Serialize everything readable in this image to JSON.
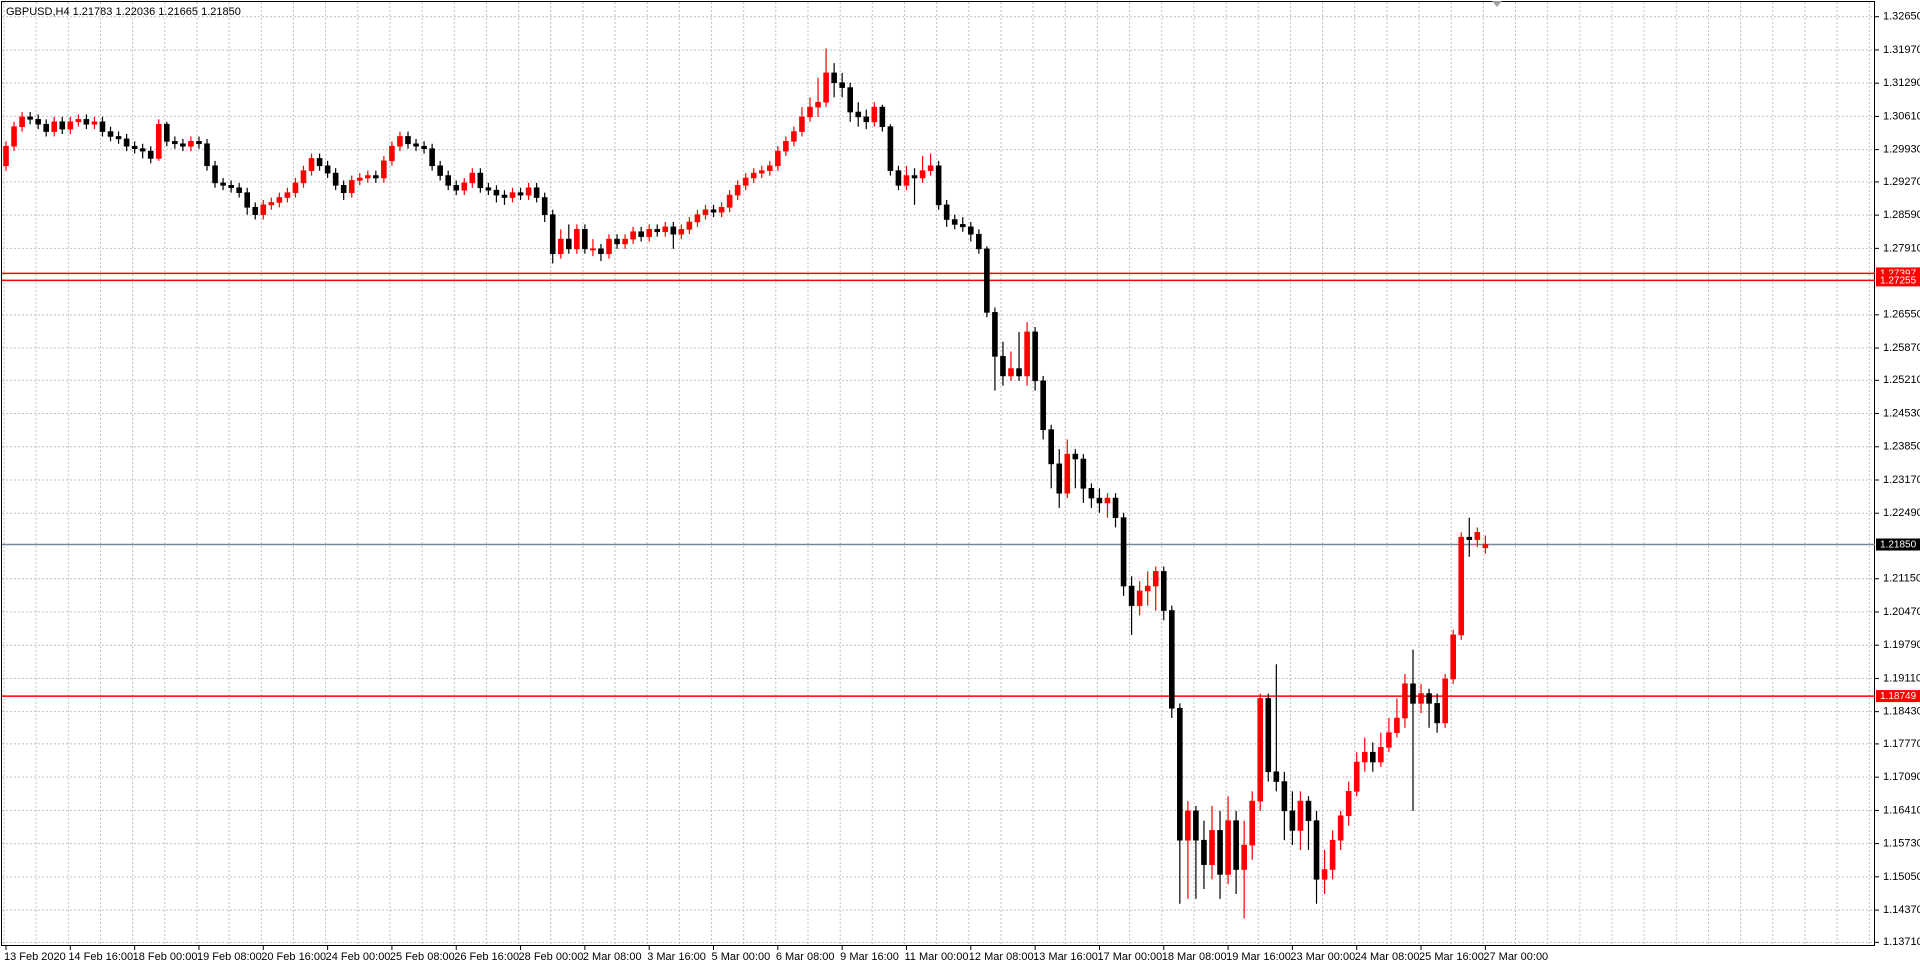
{
  "chart_data": {
    "type": "candlestick",
    "title": "GBPUSD,H4  1.21783 1.22036 1.21665 1.21850",
    "up_color": "#ff0000",
    "down_color": "#000000",
    "grid": true,
    "ylim": [
      1.13635,
      1.32951
    ],
    "yticks": [
      {
        "value": 1.3265,
        "label": "1.32650"
      },
      {
        "value": 1.3197,
        "label": "1.31970"
      },
      {
        "value": 1.3129,
        "label": "1.31290"
      },
      {
        "value": 1.3061,
        "label": "1.30610"
      },
      {
        "value": 1.2993,
        "label": "1.29930"
      },
      {
        "value": 1.2927,
        "label": "1.29270"
      },
      {
        "value": 1.2859,
        "label": "1.28590"
      },
      {
        "value": 1.2791,
        "label": "1.27910"
      },
      {
        "value": 1.2655,
        "label": "1.26550"
      },
      {
        "value": 1.2587,
        "label": "1.25870"
      },
      {
        "value": 1.2521,
        "label": "1.25210"
      },
      {
        "value": 1.2453,
        "label": "1.24530"
      },
      {
        "value": 1.2385,
        "label": "1.23850"
      },
      {
        "value": 1.2317,
        "label": "1.23170"
      },
      {
        "value": 1.2249,
        "label": "1.22490"
      },
      {
        "value": 1.2115,
        "label": "1.21150"
      },
      {
        "value": 1.2047,
        "label": "1.20470"
      },
      {
        "value": 1.1979,
        "label": "1.19790"
      },
      {
        "value": 1.1911,
        "label": "1.19110"
      },
      {
        "value": 1.1843,
        "label": "1.18430"
      },
      {
        "value": 1.1777,
        "label": "1.17770"
      },
      {
        "value": 1.1709,
        "label": "1.17090"
      },
      {
        "value": 1.1641,
        "label": "1.16410"
      },
      {
        "value": 1.1573,
        "label": "1.15730"
      },
      {
        "value": 1.1505,
        "label": "1.15050"
      },
      {
        "value": 1.1437,
        "label": "1.14370"
      },
      {
        "value": 1.1371,
        "label": "1.13710"
      }
    ],
    "hlines": [
      {
        "price": 1.27397,
        "color": "#ff0000",
        "label_bg": "#ff0000"
      },
      {
        "price": 1.27255,
        "color": "#ff0000",
        "label_bg": "#ff0000"
      },
      {
        "price": 1.18749,
        "color": "#ff0000",
        "label_bg": "#ff0000"
      },
      {
        "price": {
          "value": 1.2185,
          "label": "1.21850"
        },
        "color": "#778899",
        "label_bg": "#000000"
      }
    ],
    "categories": [
      "13 Feb 2020",
      null,
      null,
      null,
      null,
      null,
      null,
      null,
      "14 Feb 16:00",
      null,
      null,
      null,
      null,
      null,
      null,
      null,
      "18 Feb 00:00",
      null,
      null,
      null,
      null,
      null,
      null,
      null,
      "19 Feb 08:00",
      null,
      null,
      null,
      null,
      null,
      null,
      null,
      "20 Feb 16:00",
      null,
      null,
      null,
      null,
      null,
      null,
      null,
      "24 Feb 00:00",
      null,
      null,
      null,
      null,
      null,
      null,
      null,
      "25 Feb 08:00",
      null,
      null,
      null,
      null,
      null,
      null,
      null,
      "26 Feb 16:00",
      null,
      null,
      null,
      null,
      null,
      null,
      null,
      "28 Feb 00:00",
      null,
      null,
      null,
      null,
      null,
      null,
      null,
      "2 Mar 08:00",
      null,
      null,
      null,
      null,
      null,
      null,
      null,
      "3 Mar 16:00",
      null,
      null,
      null,
      null,
      null,
      null,
      null,
      "5 Mar 00:00",
      null,
      null,
      null,
      null,
      null,
      null,
      null,
      "6 Mar 08:00",
      null,
      null,
      null,
      null,
      null,
      null,
      null,
      "9 Mar 16:00",
      null,
      null,
      null,
      null,
      null,
      null,
      null,
      "11 Mar 00:00",
      null,
      null,
      null,
      null,
      null,
      null,
      null,
      "12 Mar 08:00",
      null,
      null,
      null,
      null,
      null,
      null,
      null,
      "13 Mar 16:00",
      null,
      null,
      null,
      null,
      null,
      null,
      null,
      "17 Mar 00:00",
      null,
      null,
      null,
      null,
      null,
      null,
      null,
      "18 Mar 08:00",
      null,
      null,
      null,
      null,
      null,
      null,
      null,
      "19 Mar 16:00",
      null,
      null,
      null,
      null,
      null,
      null,
      null,
      "23 Mar 00:00",
      null,
      null,
      null,
      null,
      null,
      null,
      null,
      "24 Mar 08:00",
      null,
      null,
      null,
      null,
      null,
      null,
      null,
      "25 Mar 16:00",
      null,
      null,
      null,
      null,
      null,
      null,
      null,
      "27 Mar 00:00"
    ],
    "open": [
      1.296,
      1.3,
      1.304,
      1.306,
      1.3055,
      1.3045,
      1.303,
      1.305,
      1.3035,
      1.305,
      1.3055,
      1.3045,
      1.305,
      1.303,
      1.302,
      1.3015,
      1.3,
      1.2995,
      1.299,
      1.2975,
      1.3045,
      1.301,
      1.3005,
      1.3,
      1.301,
      1.3005,
      1.296,
      1.2925,
      1.292,
      1.2915,
      1.2905,
      1.2875,
      1.286,
      1.288,
      1.2885,
      1.2895,
      1.2905,
      1.2925,
      1.295,
      1.2975,
      1.296,
      1.2945,
      1.292,
      1.2905,
      1.293,
      1.2935,
      1.294,
      1.2935,
      1.297,
      1.3,
      1.302,
      1.3005,
      1.3,
      1.2995,
      1.296,
      1.294,
      1.292,
      1.291,
      1.2925,
      1.2945,
      1.2915,
      1.291,
      1.29,
      1.2895,
      1.2905,
      1.29,
      1.2915,
      1.2895,
      1.286,
      1.278,
      1.281,
      1.279,
      1.283,
      1.279,
      1.279,
      1.278,
      1.281,
      1.28,
      1.281,
      1.2825,
      1.2815,
      1.283,
      1.2825,
      1.2835,
      1.282,
      1.283,
      1.2845,
      1.286,
      1.287,
      1.2865,
      1.2875,
      1.29,
      1.292,
      1.2935,
      1.2945,
      1.295,
      1.296,
      1.299,
      1.301,
      1.303,
      1.306,
      1.308,
      1.309,
      1.315,
      1.313,
      1.312,
      1.307,
      1.306,
      1.305,
      1.308,
      1.304,
      1.295,
      1.292,
      1.294,
      1.2935,
      1.295,
      1.296,
      1.288,
      1.285,
      1.284,
      1.2835,
      1.282,
      1.279,
      1.266,
      1.257,
      1.253,
      1.2545,
      1.253,
      1.262,
      1.252,
      1.242,
      1.235,
      1.229,
      1.237,
      1.236,
      1.23,
      1.228,
      1.227,
      1.228,
      1.224,
      1.21,
      1.206,
      1.209,
      1.21,
      1.213,
      1.205,
      1.185,
      1.158,
      1.164,
      1.158,
      1.153,
      1.16,
      1.151,
      1.162,
      1.152,
      1.157,
      1.166,
      1.187,
      1.172,
      1.17,
      1.164,
      1.16,
      1.166,
      1.162,
      1.15,
      1.152,
      1.158,
      1.163,
      1.168,
      1.174,
      1.176,
      1.174,
      1.177,
      1.18,
      1.183,
      1.19,
      1.186,
      1.188,
      1.186,
      1.182,
      1.191,
      1.2,
      1.22,
      1.2195,
      1.21783
    ],
    "high": [
      1.301,
      1.305,
      1.307,
      1.307,
      1.3065,
      1.3055,
      1.306,
      1.306,
      1.306,
      1.3065,
      1.3065,
      1.306,
      1.306,
      1.304,
      1.303,
      1.3025,
      1.301,
      1.3005,
      1.3,
      1.3055,
      1.305,
      1.302,
      1.3015,
      1.302,
      1.302,
      1.3015,
      1.297,
      1.2935,
      1.293,
      1.2925,
      1.2915,
      1.2885,
      1.289,
      1.2895,
      1.2905,
      1.2915,
      1.2935,
      1.296,
      1.2985,
      1.2985,
      1.297,
      1.2955,
      1.293,
      1.294,
      1.2945,
      1.295,
      1.295,
      1.298,
      1.301,
      1.303,
      1.303,
      1.3015,
      1.301,
      1.3005,
      1.297,
      1.295,
      1.293,
      1.2935,
      1.2955,
      1.2955,
      1.2925,
      1.292,
      1.291,
      1.2915,
      1.2915,
      1.2925,
      1.2925,
      1.2905,
      1.287,
      1.283,
      1.284,
      1.284,
      1.284,
      1.281,
      1.28,
      1.282,
      1.282,
      1.282,
      1.2835,
      1.2835,
      1.284,
      1.284,
      1.2845,
      1.2845,
      1.284,
      1.2855,
      1.287,
      1.288,
      1.288,
      1.2885,
      1.291,
      1.293,
      1.2945,
      1.2955,
      1.296,
      1.297,
      1.3,
      1.302,
      1.304,
      1.308,
      1.31,
      1.314,
      1.32,
      1.317,
      1.315,
      1.313,
      1.309,
      1.3075,
      1.309,
      1.3085,
      1.3045,
      1.296,
      1.296,
      1.2955,
      1.298,
      1.2985,
      1.297,
      1.289,
      1.286,
      1.2855,
      1.2845,
      1.283,
      1.2795,
      1.267,
      1.26,
      1.258,
      1.262,
      1.264,
      1.263,
      1.253,
      1.243,
      1.238,
      1.24,
      1.238,
      1.237,
      1.231,
      1.23,
      1.229,
      1.229,
      1.225,
      1.212,
      1.211,
      1.213,
      1.214,
      1.214,
      1.206,
      1.186,
      1.166,
      1.165,
      1.162,
      1.165,
      1.164,
      1.167,
      1.164,
      1.162,
      1.168,
      1.188,
      1.188,
      1.194,
      1.172,
      1.168,
      1.168,
      1.167,
      1.164,
      1.156,
      1.16,
      1.164,
      1.17,
      1.176,
      1.179,
      1.178,
      1.18,
      1.183,
      1.187,
      1.192,
      1.197,
      1.19,
      1.189,
      1.188,
      1.192,
      1.201,
      1.221,
      1.224,
      1.222,
      1.22036
    ],
    "low": [
      1.295,
      1.299,
      1.303,
      1.3045,
      1.3035,
      1.302,
      1.302,
      1.3025,
      1.3025,
      1.304,
      1.3035,
      1.3035,
      1.302,
      1.301,
      1.3005,
      1.299,
      1.2985,
      1.2975,
      1.2965,
      1.297,
      1.3,
      1.2995,
      1.299,
      1.299,
      1.2995,
      1.295,
      1.2915,
      1.291,
      1.2905,
      1.2895,
      1.286,
      1.285,
      1.285,
      1.287,
      1.2875,
      1.2885,
      1.2895,
      1.2915,
      1.294,
      1.295,
      1.2935,
      1.291,
      1.289,
      1.2895,
      1.292,
      1.2925,
      1.2925,
      1.2925,
      1.296,
      1.299,
      1.2995,
      1.299,
      1.2985,
      1.295,
      1.293,
      1.291,
      1.29,
      1.29,
      1.2915,
      1.2905,
      1.29,
      1.2885,
      1.288,
      1.2885,
      1.289,
      1.289,
      1.2885,
      1.2845,
      1.276,
      1.277,
      1.278,
      1.278,
      1.278,
      1.2775,
      1.2765,
      1.277,
      1.279,
      1.279,
      1.28,
      1.2805,
      1.2805,
      1.2815,
      1.2815,
      1.279,
      1.281,
      1.282,
      1.2835,
      1.285,
      1.2855,
      1.2855,
      1.2865,
      1.289,
      1.291,
      1.2925,
      1.2935,
      1.294,
      1.295,
      1.298,
      1.3,
      1.302,
      1.305,
      1.306,
      1.308,
      1.31,
      1.31,
      1.305,
      1.304,
      1.3035,
      1.304,
      1.303,
      1.294,
      1.291,
      1.291,
      1.288,
      1.2925,
      1.294,
      1.287,
      1.2835,
      1.283,
      1.2825,
      1.2805,
      1.278,
      1.265,
      1.25,
      1.251,
      1.252,
      1.252,
      1.251,
      1.25,
      1.24,
      1.23,
      1.226,
      1.228,
      1.23,
      1.227,
      1.226,
      1.225,
      1.224,
      1.222,
      1.208,
      1.2,
      1.204,
      1.206,
      1.205,
      1.203,
      1.183,
      1.145,
      1.146,
      1.146,
      1.148,
      1.15,
      1.146,
      1.149,
      1.147,
      1.142,
      1.154,
      1.164,
      1.17,
      1.168,
      1.158,
      1.157,
      1.156,
      1.156,
      1.145,
      1.147,
      1.15,
      1.156,
      1.161,
      1.167,
      1.172,
      1.172,
      1.173,
      1.176,
      1.179,
      1.181,
      1.164,
      1.184,
      1.181,
      1.18,
      1.181,
      1.19,
      1.199,
      1.216,
      1.218,
      1.21665
    ],
    "close": [
      1.3,
      1.304,
      1.306,
      1.3055,
      1.3045,
      1.303,
      1.305,
      1.3035,
      1.305,
      1.3055,
      1.3045,
      1.305,
      1.303,
      1.302,
      1.3015,
      1.3,
      1.2995,
      1.299,
      1.2975,
      1.3045,
      1.301,
      1.3005,
      1.3,
      1.301,
      1.3005,
      1.296,
      1.2925,
      1.292,
      1.2915,
      1.2905,
      1.2875,
      1.286,
      1.288,
      1.2885,
      1.2895,
      1.2905,
      1.2925,
      1.295,
      1.2975,
      1.296,
      1.2945,
      1.292,
      1.2905,
      1.293,
      1.2935,
      1.294,
      1.2935,
      1.297,
      1.3,
      1.302,
      1.3005,
      1.3,
      1.2995,
      1.296,
      1.294,
      1.292,
      1.291,
      1.2925,
      1.2945,
      1.2915,
      1.291,
      1.29,
      1.2895,
      1.2905,
      1.29,
      1.2915,
      1.2895,
      1.286,
      1.278,
      1.281,
      1.279,
      1.283,
      1.279,
      1.279,
      1.278,
      1.281,
      1.28,
      1.281,
      1.2825,
      1.2815,
      1.283,
      1.2825,
      1.2835,
      1.282,
      1.283,
      1.2845,
      1.286,
      1.287,
      1.2865,
      1.2875,
      1.29,
      1.292,
      1.2935,
      1.2945,
      1.295,
      1.296,
      1.299,
      1.301,
      1.303,
      1.306,
      1.308,
      1.309,
      1.315,
      1.313,
      1.312,
      1.307,
      1.306,
      1.305,
      1.308,
      1.304,
      1.295,
      1.292,
      1.294,
      1.2935,
      1.295,
      1.296,
      1.288,
      1.285,
      1.284,
      1.2835,
      1.282,
      1.279,
      1.266,
      1.257,
      1.253,
      1.2545,
      1.253,
      1.262,
      1.252,
      1.242,
      1.235,
      1.229,
      1.237,
      1.236,
      1.23,
      1.228,
      1.227,
      1.228,
      1.224,
      1.21,
      1.206,
      1.209,
      1.21,
      1.213,
      1.205,
      1.185,
      1.158,
      1.164,
      1.158,
      1.153,
      1.16,
      1.151,
      1.162,
      1.152,
      1.157,
      1.166,
      1.187,
      1.172,
      1.17,
      1.164,
      1.16,
      1.166,
      1.162,
      1.15,
      1.152,
      1.158,
      1.163,
      1.168,
      1.174,
      1.176,
      1.174,
      1.177,
      1.18,
      1.183,
      1.19,
      1.186,
      1.188,
      1.186,
      1.182,
      1.191,
      1.2,
      1.22,
      1.2195,
      1.221,
      1.2185
    ]
  }
}
